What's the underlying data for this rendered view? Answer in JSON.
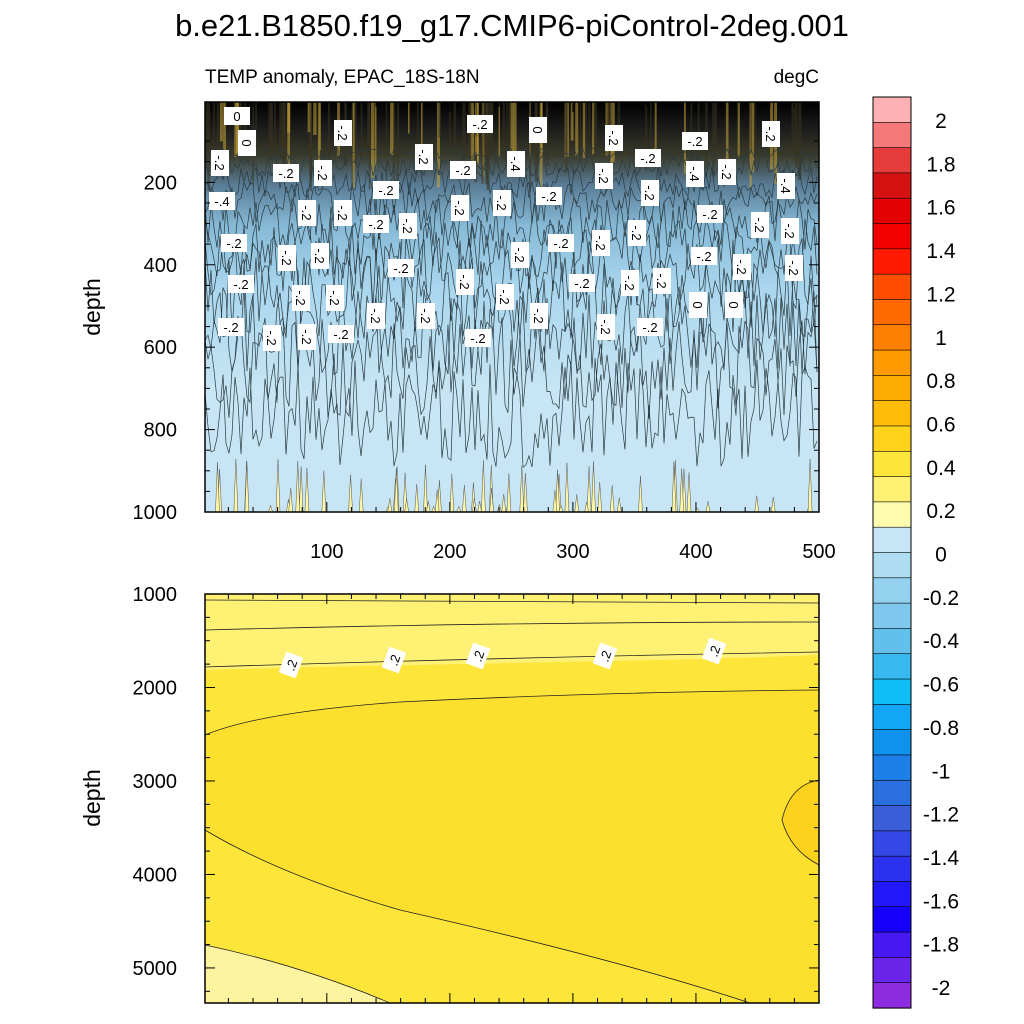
{
  "figure": {
    "title": "b.e21.B1850.f19_g17.CMIP6-piControl-2deg.001",
    "left_string": "TEMP anomaly, EPAC_18S-18N",
    "right_string": "degC"
  },
  "chart_data": [
    {
      "type": "heatmap",
      "panel": "upper",
      "xlabel": "",
      "ylabel": "depth",
      "xlim": [
        1,
        500
      ],
      "ylim": [
        1000,
        5
      ],
      "y_reversed": true,
      "x_ticks": [
        100,
        200,
        300,
        400,
        500
      ],
      "y_ticks": [
        200,
        400,
        600,
        800,
        1000
      ],
      "contour_interval": 0.2,
      "description_values": {
        "dominant_range": [
          -0.2,
          0
        ],
        "surface_range": [
          -2,
          0.6
        ],
        "deep_range": [
          0,
          0.2
        ]
      },
      "contour_labels": [
        "0",
        "0",
        "-.2",
        "-.2",
        "0",
        "-.2",
        "-.2",
        "-.2",
        "-.2",
        "-.2",
        "-.2",
        "-.2",
        "-.2",
        "-.4",
        "-.2",
        "-.2",
        "-.4",
        "-.2",
        "-.4",
        "-.2",
        "-.2",
        "-.2",
        "-.2",
        "-.2",
        "-.2",
        "-.2",
        "-.4",
        "-.2",
        "-.2",
        "-.2",
        "-.2",
        "-.2",
        "-.2",
        "-.2",
        "-.2",
        "-.2",
        "-.2",
        "-.2",
        "-.2",
        "-.2",
        "-.2",
        "-.2",
        "-.2",
        "-.2",
        "-.2",
        "-.2",
        "-.2",
        "-.2",
        "-.2",
        "-.2",
        "-.2",
        "-.2",
        "-.2",
        "-.2",
        "-.2",
        "-.2",
        "-.2",
        "-.2",
        "-.2",
        "-.2",
        "-.2",
        "0",
        "0"
      ]
    },
    {
      "type": "heatmap",
      "panel": "lower",
      "xlabel": "",
      "ylabel": "depth",
      "xlim": [
        1,
        500
      ],
      "ylim": [
        5375,
        1000
      ],
      "y_reversed": true,
      "y_ticks": [
        1000,
        2000,
        3000,
        4000,
        5000
      ],
      "contour_interval": 0.2,
      "contour_labels": [
        ".2",
        ".2",
        ".2",
        ".2",
        ".2"
      ],
      "description_values": {
        "range": [
          0,
          0.6
        ],
        "core_max_region": [
          0.4,
          0.6
        ]
      }
    }
  ],
  "colorbar": {
    "labels": [
      "2",
      "1.8",
      "1.6",
      "1.4",
      "1.2",
      "1",
      "0.8",
      "0.6",
      "0.4",
      "0.2",
      "0",
      "-0.2",
      "-0.4",
      "-0.6",
      "-0.8",
      "-1",
      "-1.2",
      "-1.4",
      "-1.6",
      "-1.8",
      "-2"
    ],
    "colors": [
      "#fcb2b2",
      "#f47a7a",
      "#e63c3c",
      "#d51111",
      "#e20000",
      "#f20000",
      "#ff1a00",
      "#ff4d00",
      "#ff6900",
      "#ff7f00",
      "#ff9a00",
      "#ffac00",
      "#ffbd0a",
      "#ffd21c",
      "#fee53a",
      "#fef174",
      "#fdfbad",
      "#c7e5f4",
      "#aedcf0",
      "#93d1ee",
      "#7fc7ec",
      "#63c0ea",
      "#35b9ee",
      "#10bef7",
      "#13a6f4",
      "#0f91ee",
      "#1c7ee7",
      "#2a6fe0",
      "#3a5ed8",
      "#3448e6",
      "#2b31ef",
      "#2117f7",
      "#1500fc",
      "#4618f2",
      "#6a24e9",
      "#8d2be1"
    ]
  }
}
